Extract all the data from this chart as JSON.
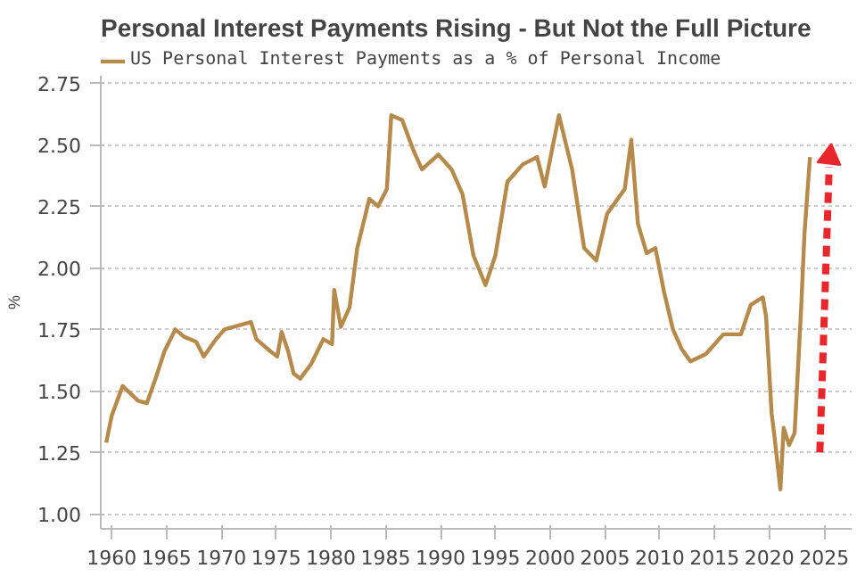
{
  "chart_data": {
    "type": "line",
    "title": "Personal Interest Payments Rising - But Not the Full Picture",
    "ylabel": "%",
    "x": [
      1959.5,
      1960,
      1961,
      1962.4,
      1963.2,
      1964,
      1964.8,
      1965.8,
      1966.6,
      1967.7,
      1968.4,
      1969.5,
      1970.3,
      1971.9,
      1972.7,
      1973.2,
      1974.5,
      1975.1,
      1975.5,
      1976.1,
      1976.6,
      1977.2,
      1978.2,
      1979.3,
      1980.1,
      1980.3,
      1980.9,
      1981.7,
      1982.4,
      1983.5,
      1984.3,
      1985.1,
      1985.5,
      1986.5,
      1987.5,
      1988.3,
      1989.8,
      1991,
      1992,
      1993,
      1994.1,
      1995,
      1996.1,
      1997.5,
      1998.8,
      1999.5,
      2000.8,
      2002,
      2003.1,
      2004.2,
      2005.2,
      2006.8,
      2007.4,
      2008,
      2008.8,
      2009.6,
      2010.4,
      2011.2,
      2012,
      2012.8,
      2014.2,
      2015.8,
      2017.4,
      2018.3,
      2019.4,
      2019.7,
      2020.2,
      2020.5,
      2021,
      2021.3,
      2021.8,
      2022.3,
      2022.9,
      2023.2,
      2023.7
    ],
    "series": [
      {
        "name": "US Personal Interest Payments as a % of Personal Income",
        "color": "#b58a4a",
        "values": [
          1.29,
          1.4,
          1.52,
          1.46,
          1.45,
          1.55,
          1.66,
          1.75,
          1.72,
          1.7,
          1.64,
          1.71,
          1.75,
          1.77,
          1.78,
          1.71,
          1.66,
          1.64,
          1.74,
          1.66,
          1.57,
          1.55,
          1.61,
          1.71,
          1.69,
          1.91,
          1.76,
          1.84,
          2.08,
          2.28,
          2.25,
          2.32,
          2.62,
          2.6,
          2.48,
          2.4,
          2.46,
          2.4,
          2.3,
          2.05,
          1.93,
          2.05,
          2.35,
          2.42,
          2.45,
          2.33,
          2.62,
          2.4,
          2.08,
          2.03,
          2.22,
          2.32,
          2.52,
          2.18,
          2.06,
          2.08,
          1.9,
          1.75,
          1.67,
          1.62,
          1.65,
          1.73,
          1.73,
          1.85,
          1.88,
          1.8,
          1.41,
          1.3,
          1.1,
          1.35,
          1.28,
          1.33,
          1.84,
          2.14,
          2.45
        ]
      }
    ],
    "xlim": [
      1959,
      2027.5
    ],
    "ylim": [
      0.94,
      2.78
    ],
    "xticks": [
      1960,
      1965,
      1970,
      1975,
      1980,
      1985,
      1990,
      1995,
      2000,
      2005,
      2010,
      2015,
      2020,
      2025
    ],
    "yticks": [
      {
        "value": 1.0,
        "label": "1.00"
      },
      {
        "value": 1.25,
        "label": "1.25"
      },
      {
        "value": 1.5,
        "label": "1.50"
      },
      {
        "value": 1.75,
        "label": "1.75"
      },
      {
        "value": 2.0,
        "label": "2.00"
      },
      {
        "value": 2.25,
        "label": "2.25"
      },
      {
        "value": 2.5,
        "label": "2.50"
      },
      {
        "value": 2.75,
        "label": "2.75"
      }
    ],
    "grid": "y",
    "legend": "top left",
    "marker": "none",
    "line_style": "solid"
  }
}
